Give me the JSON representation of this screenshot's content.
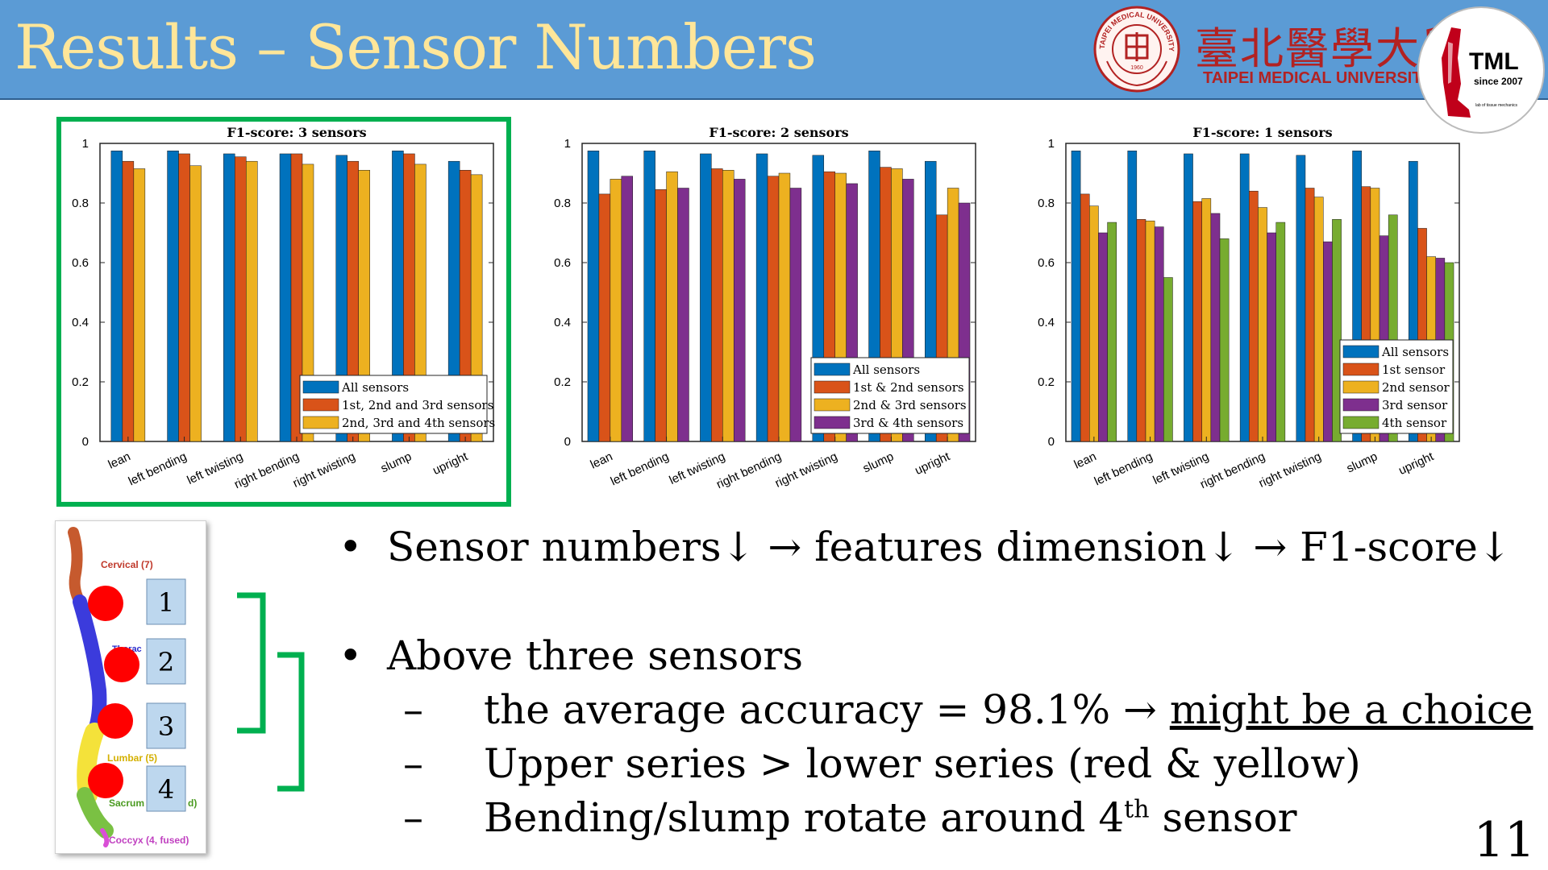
{
  "header": {
    "title": "Results – Sensor Numbers",
    "university_cn": "臺北醫學大學",
    "university_en": "TAIPEI MEDICAL UNIVERSITY",
    "seal_text": "TAIPEI MEDICAL UNIVERSITY",
    "seal_year": "1960",
    "lab_logo_title": "TML",
    "lab_logo_since": "since 2007",
    "lab_logo_sub": "lab of tissue mechanics"
  },
  "colors": {
    "header_bg": "#5b9bd5",
    "title": "#ffe699",
    "highlight": "#00b050",
    "series": [
      "#0072bd",
      "#d95319",
      "#edb120",
      "#7e2f8e",
      "#77ac30"
    ]
  },
  "chart_data": [
    {
      "type": "bar",
      "title": "F1-score: 3 sensors",
      "categories": [
        "lean",
        "left bending",
        "left twisting",
        "right bending",
        "right twisting",
        "slump",
        "upright"
      ],
      "ylim": [
        0,
        1
      ],
      "yticks": [
        "0",
        "0.2",
        "0.4",
        "0.6",
        "0.8",
        "1"
      ],
      "legend_position": "bottom-right",
      "series": [
        {
          "name": "All sensors",
          "values": [
            0.975,
            0.975,
            0.965,
            0.965,
            0.96,
            0.975,
            0.94
          ]
        },
        {
          "name": "1st, 2nd and 3rd sensors",
          "values": [
            0.94,
            0.965,
            0.955,
            0.965,
            0.94,
            0.965,
            0.91
          ]
        },
        {
          "name": "2nd, 3rd and 4th sensors",
          "values": [
            0.915,
            0.925,
            0.94,
            0.93,
            0.91,
            0.93,
            0.895
          ]
        }
      ]
    },
    {
      "type": "bar",
      "title": "F1-score: 2 sensors",
      "categories": [
        "lean",
        "left bending",
        "left twisting",
        "right bending",
        "right twisting",
        "slump",
        "upright"
      ],
      "ylim": [
        0,
        1
      ],
      "yticks": [
        "0",
        "0.2",
        "0.4",
        "0.6",
        "0.8",
        "1"
      ],
      "legend_position": "bottom-right",
      "series": [
        {
          "name": "All sensors",
          "values": [
            0.975,
            0.975,
            0.965,
            0.965,
            0.96,
            0.975,
            0.94
          ]
        },
        {
          "name": "1st & 2nd sensors",
          "values": [
            0.83,
            0.845,
            0.915,
            0.89,
            0.905,
            0.92,
            0.76
          ]
        },
        {
          "name": "2nd & 3rd sensors",
          "values": [
            0.88,
            0.905,
            0.91,
            0.9,
            0.9,
            0.915,
            0.85
          ]
        },
        {
          "name": "3rd & 4th sensors",
          "values": [
            0.89,
            0.85,
            0.88,
            0.85,
            0.865,
            0.88,
            0.8
          ]
        }
      ]
    },
    {
      "type": "bar",
      "title": "F1-score: 1 sensors",
      "categories": [
        "lean",
        "left bending",
        "left twisting",
        "right bending",
        "right twisting",
        "slump",
        "upright"
      ],
      "ylim": [
        0,
        1
      ],
      "yticks": [
        "0",
        "0.2",
        "0.4",
        "0.6",
        "0.8",
        "1"
      ],
      "legend_position": "bottom-right",
      "series": [
        {
          "name": "All sensors",
          "values": [
            0.975,
            0.975,
            0.965,
            0.965,
            0.96,
            0.975,
            0.94
          ]
        },
        {
          "name": "1st sensor",
          "values": [
            0.83,
            0.745,
            0.805,
            0.84,
            0.85,
            0.855,
            0.715
          ]
        },
        {
          "name": "2nd sensor",
          "values": [
            0.79,
            0.74,
            0.815,
            0.785,
            0.82,
            0.85,
            0.62
          ]
        },
        {
          "name": "3rd sensor",
          "values": [
            0.7,
            0.72,
            0.765,
            0.7,
            0.67,
            0.69,
            0.615
          ]
        },
        {
          "name": "4th sensor",
          "values": [
            0.735,
            0.55,
            0.68,
            0.735,
            0.745,
            0.76,
            0.6
          ]
        }
      ]
    }
  ],
  "spine": {
    "labels": {
      "cervical": "Cervical (7)",
      "thoracic": "Thorac",
      "lumbar": "Lumbar (5)",
      "sacrum": "Sacrum",
      "sacrum_tail": "d)",
      "coccyx": "Coccyx (4, fused)"
    },
    "sensors": [
      "1",
      "2",
      "3",
      "4"
    ]
  },
  "bullets": {
    "b1": "Sensor numbers↓ → features dimension↓ → F1-score↓",
    "b2": "Above three sensors",
    "s1_pre": "the average accuracy = 98.1% → ",
    "s1_underlined": "might be a choice",
    "s2": "Upper series > lower series (red & yellow)",
    "s3_pre": "Bending/slump rotate around 4",
    "s3_sup": "th",
    "s3_post": " sensor",
    "bullet_glyph": "•",
    "dash_glyph": "–"
  },
  "page_number": "11"
}
